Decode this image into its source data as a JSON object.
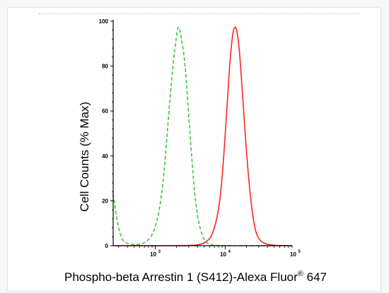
{
  "chart_data": {
    "type": "line",
    "title": "",
    "xlabel": "Phospho-beta Arrestin 1 (S412)-Alexa Fluor",
    "xlabel_superscript": "®",
    "xlabel_suffix": " 647",
    "ylabel": "Cell Counts (% Max)",
    "x_scale": "log",
    "xlim": [
      250,
      90000
    ],
    "ylim": [
      0,
      100
    ],
    "yticks": [
      0,
      20,
      40,
      60,
      80,
      100
    ],
    "ytick_labels": [
      "0",
      "20",
      "40",
      "60",
      "80",
      "100"
    ],
    "xtick_decades": [
      {
        "base": "10",
        "exp": "3",
        "value": 1000
      },
      {
        "base": "10",
        "exp": "4",
        "value": 10000
      },
      {
        "base": "10",
        "exp": "5",
        "value": 100000
      }
    ],
    "grid": false,
    "legend": "none",
    "series": [
      {
        "color": "#33cc33",
        "style": "dashed",
        "x": [
          250,
          290,
          340,
          400,
          500,
          650,
          800,
          950,
          1100,
          1250,
          1400,
          1550,
          1700,
          1850,
          2000,
          2100,
          2250,
          2400,
          2600,
          2800,
          3000,
          3300,
          3600,
          4000,
          4500,
          5000,
          5600,
          6300,
          7000,
          8000,
          10000,
          20000,
          50000,
          90000
        ],
        "y": [
          23,
          9,
          2,
          1,
          0.3,
          0.8,
          2.5,
          6,
          13,
          24,
          40,
          58,
          73,
          85,
          93,
          98,
          96,
          91,
          84,
          72,
          58,
          40,
          25,
          13,
          6,
          2.5,
          1,
          0.4,
          0.2,
          0.1,
          0,
          0,
          0,
          0
        ]
      },
      {
        "color": "#ff2222",
        "style": "solid",
        "x": [
          250,
          1000,
          3000,
          4500,
          5500,
          6300,
          7000,
          7800,
          8500,
          9200,
          10000,
          10800,
          11500,
          12300,
          13000,
          14000,
          15000,
          16000,
          17000,
          18500,
          20000,
          22000,
          24000,
          26000,
          28000,
          31000,
          35000,
          40000,
          46000,
          55000,
          70000,
          90000
        ],
        "y": [
          0,
          0,
          0,
          0.5,
          2,
          4,
          8,
          14,
          22,
          34,
          50,
          66,
          80,
          90,
          96,
          98,
          94,
          86,
          74,
          58,
          42,
          27,
          16,
          9,
          5,
          2.5,
          1.2,
          0.6,
          0.3,
          0.1,
          0,
          0
        ]
      }
    ]
  }
}
